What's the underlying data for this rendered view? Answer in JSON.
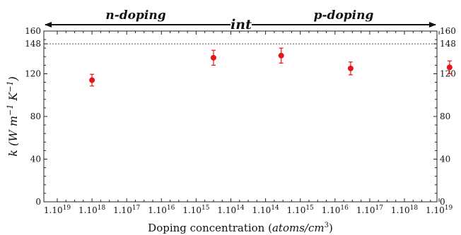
{
  "chart_data": {
    "type": "scatter",
    "title": "",
    "xlabel": "Doping concentration (",
    "xlabel_math": "atoms/cm",
    "xlabel_sup": "3",
    "xlabel_close": ")",
    "ylabel": "k (W m",
    "ylabel_sup1": "−1",
    "ylabel_mid": " K",
    "ylabel_sup2": "−1",
    "ylabel_close": ")",
    "ylim": [
      0,
      160
    ],
    "yticks": [
      0,
      40,
      80,
      120,
      148,
      160
    ],
    "reference_line": {
      "value": 148,
      "style": "dotted"
    },
    "x_tick_labels": [
      {
        "base": "1.10",
        "exp": "19"
      },
      {
        "base": "1.10",
        "exp": "18"
      },
      {
        "base": "1.10",
        "exp": "17"
      },
      {
        "base": "1.10",
        "exp": "16"
      },
      {
        "base": "1.10",
        "exp": "15"
      },
      {
        "base": "1.10",
        "exp": "14"
      },
      {
        "base": "1.10",
        "exp": "14"
      },
      {
        "base": "1.10",
        "exp": "15"
      },
      {
        "base": "1.10",
        "exp": "16"
      },
      {
        "base": "1.10",
        "exp": "17"
      },
      {
        "base": "1.10",
        "exp": "18"
      },
      {
        "base": "1.10",
        "exp": "19"
      }
    ],
    "regions": [
      {
        "label": "n-doping",
        "from_tick": 0,
        "to_tick": 5
      },
      {
        "label": "int"
      },
      {
        "label": "p-doping",
        "from_tick": 6,
        "to_tick": 11
      }
    ],
    "series": [
      {
        "color": "#e8141c",
        "points": [
          {
            "x_label": "1.10^18 (n)",
            "x_pos": 1.0,
            "y": 114,
            "err": 5.5
          },
          {
            "x_label": "1.10^15 (n)",
            "x_pos": 4.5,
            "y": 135,
            "err": 7
          },
          {
            "x_label": "intrinsic",
            "x_pos": 6.45,
            "y": 137,
            "err": 7
          },
          {
            "x_label": "1.10^15 (p)",
            "x_pos": 8.45,
            "y": 125,
            "err": 6
          },
          {
            "x_label": "1.10^18 (p)",
            "x_pos": 11.3,
            "y": 126,
            "err": 6
          }
        ]
      }
    ]
  }
}
